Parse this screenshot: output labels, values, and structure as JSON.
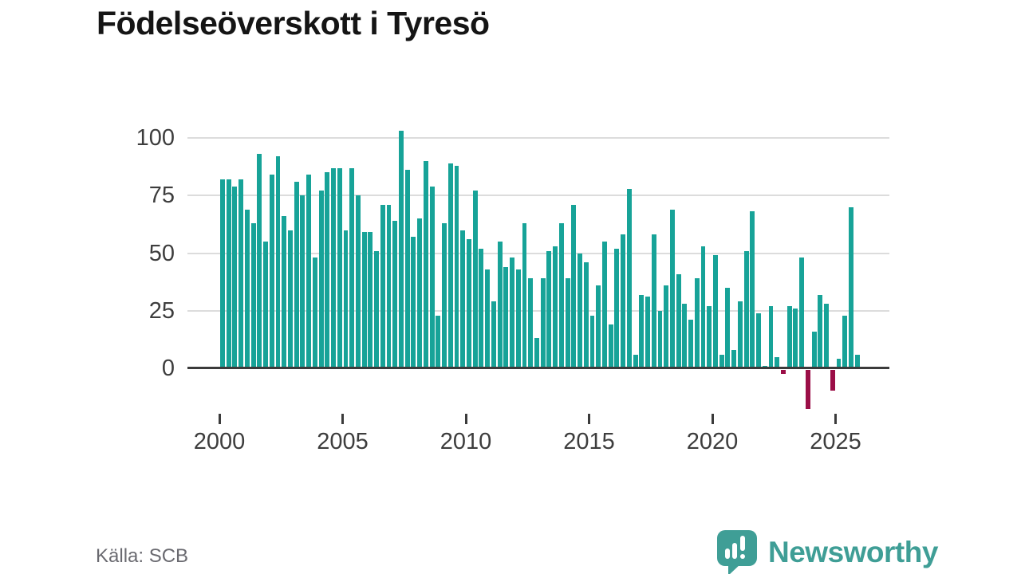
{
  "title": "Födelseöverskott i Tyresö",
  "source": "Källa: SCB",
  "logo": {
    "text": "Newsworthy"
  },
  "colors": {
    "positive_bar": "#17a398",
    "negative_bar": "#9b0e47",
    "axis": "#3b3b3b",
    "grid": "#dcdcdc",
    "logo_teal": "#3f9e96"
  },
  "chart_data": {
    "type": "bar",
    "title": "Födelseöverskott i Tyresö",
    "x_start": "2000 Q1",
    "x_step": "quarter",
    "x_ticks": [
      2000,
      2005,
      2010,
      2015,
      2020,
      2025
    ],
    "y_ticks": [
      0,
      25,
      50,
      75,
      100
    ],
    "ylim": [
      -20,
      107
    ],
    "grid": true,
    "legend": false,
    "series": [
      {
        "name": "Födelseöverskott",
        "values": [
          82,
          82,
          79,
          82,
          69,
          63,
          93,
          55,
          84,
          92,
          66,
          60,
          81,
          75,
          84,
          48,
          77,
          85,
          87,
          87,
          60,
          87,
          75,
          59,
          59,
          51,
          71,
          71,
          64,
          103,
          86,
          57,
          65,
          90,
          79,
          23,
          63,
          89,
          88,
          60,
          56,
          77,
          52,
          43,
          29,
          55,
          44,
          48,
          43,
          63,
          39,
          13,
          39,
          51,
          53,
          63,
          39,
          71,
          50,
          46,
          23,
          36,
          55,
          19,
          52,
          58,
          78,
          6,
          32,
          31,
          58,
          25,
          36,
          69,
          41,
          28,
          21,
          39,
          53,
          27,
          49,
          6,
          35,
          8,
          29,
          51,
          68,
          24,
          1,
          27,
          5,
          -2,
          27,
          26,
          48,
          -17,
          16,
          32,
          28,
          -9,
          4,
          23,
          70,
          6
        ]
      }
    ]
  }
}
